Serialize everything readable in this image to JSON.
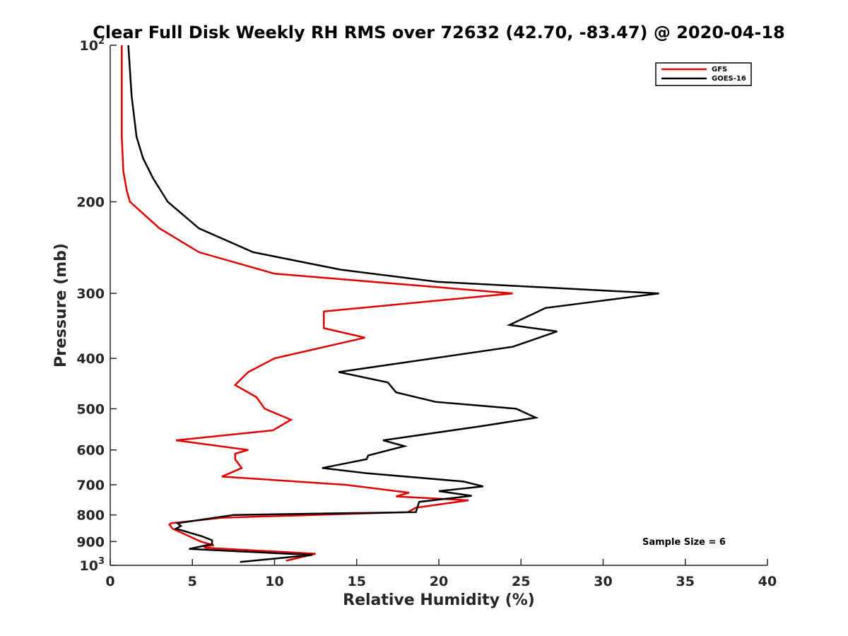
{
  "chart_data": {
    "type": "line",
    "title": "Clear Full Disk Weekly RH RMS over 72632 (42.70, -83.47) @ 2020-04-18",
    "xlabel": "Relative Humidity (%)",
    "ylabel": "Pressure (mb)",
    "xlim": [
      0,
      40
    ],
    "ylim": [
      100,
      1000
    ],
    "y_scale": "log",
    "y_reversed": true,
    "x_ticks": [
      "0",
      "5",
      "10",
      "15",
      "20",
      "25",
      "30",
      "35",
      "40"
    ],
    "y_ticks": [
      {
        "value": 100,
        "base": "10",
        "exp": "2"
      },
      {
        "value": 200,
        "label": "200"
      },
      {
        "value": 300,
        "label": "300"
      },
      {
        "value": 400,
        "label": "400"
      },
      {
        "value": 500,
        "label": "500"
      },
      {
        "value": 600,
        "label": "600"
      },
      {
        "value": 700,
        "label": "700"
      },
      {
        "value": 800,
        "label": "800"
      },
      {
        "value": 900,
        "label": "900"
      },
      {
        "value": 1000,
        "base": "10",
        "exp": "3"
      }
    ],
    "grid": false,
    "legend_position": "top-right",
    "annotation": "Sample Size = 6",
    "series": [
      {
        "name": "GFS",
        "color": "#e00000",
        "points": [
          [
            0.7,
            100
          ],
          [
            0.7,
            125
          ],
          [
            0.7,
            150
          ],
          [
            0.8,
            175
          ],
          [
            1.0,
            190
          ],
          [
            1.2,
            200
          ],
          [
            3.0,
            225
          ],
          [
            5.4,
            250
          ],
          [
            10.0,
            275
          ],
          [
            24.5,
            300
          ],
          [
            13.0,
            325
          ],
          [
            13.0,
            350
          ],
          [
            15.5,
            365
          ],
          [
            10.0,
            400
          ],
          [
            8.4,
            425
          ],
          [
            7.6,
            450
          ],
          [
            8.9,
            475
          ],
          [
            9.4,
            500
          ],
          [
            11.0,
            525
          ],
          [
            9.9,
            550
          ],
          [
            4.0,
            575
          ],
          [
            8.4,
            600
          ],
          [
            7.6,
            610
          ],
          [
            7.6,
            625
          ],
          [
            8.0,
            650
          ],
          [
            6.8,
            675
          ],
          [
            14.3,
            700
          ],
          [
            18.2,
            725
          ],
          [
            17.4,
            737
          ],
          [
            21.8,
            750
          ],
          [
            18.6,
            775
          ],
          [
            18.1,
            790
          ],
          [
            6.8,
            810
          ],
          [
            3.7,
            830
          ],
          [
            3.6,
            835
          ],
          [
            3.8,
            850
          ],
          [
            5.5,
            900
          ],
          [
            6.3,
            915
          ],
          [
            5.7,
            920
          ],
          [
            5.8,
            925
          ],
          [
            12.5,
            950
          ],
          [
            11.0,
            975
          ],
          [
            10.7,
            980
          ]
        ]
      },
      {
        "name": "GOES-16",
        "color": "#000000",
        "points": [
          [
            1.1,
            100
          ],
          [
            1.3,
            125
          ],
          [
            1.6,
            150
          ],
          [
            2.0,
            165
          ],
          [
            2.6,
            180
          ],
          [
            3.5,
            200
          ],
          [
            5.4,
            225
          ],
          [
            8.7,
            250
          ],
          [
            14.0,
            270
          ],
          [
            19.9,
            285
          ],
          [
            33.4,
            300
          ],
          [
            26.5,
            320
          ],
          [
            24.3,
            345
          ],
          [
            27.2,
            355
          ],
          [
            24.5,
            380
          ],
          [
            13.9,
            425
          ],
          [
            16.9,
            445
          ],
          [
            17.4,
            465
          ],
          [
            19.8,
            485
          ],
          [
            24.7,
            500
          ],
          [
            25.9,
            520
          ],
          [
            22.6,
            540
          ],
          [
            16.6,
            575
          ],
          [
            17.9,
            590
          ],
          [
            15.7,
            615
          ],
          [
            15.6,
            625
          ],
          [
            12.9,
            650
          ],
          [
            15.6,
            665
          ],
          [
            21.5,
            690
          ],
          [
            22.7,
            705
          ],
          [
            20.0,
            720
          ],
          [
            22.0,
            735
          ],
          [
            18.8,
            755
          ],
          [
            18.6,
            790
          ],
          [
            7.5,
            800
          ],
          [
            4.1,
            830
          ],
          [
            4.3,
            840
          ],
          [
            4.0,
            850
          ],
          [
            5.6,
            880
          ],
          [
            6.2,
            895
          ],
          [
            6.2,
            910
          ],
          [
            4.8,
            930
          ],
          [
            12.3,
            955
          ],
          [
            7.9,
            985
          ]
        ]
      }
    ]
  }
}
